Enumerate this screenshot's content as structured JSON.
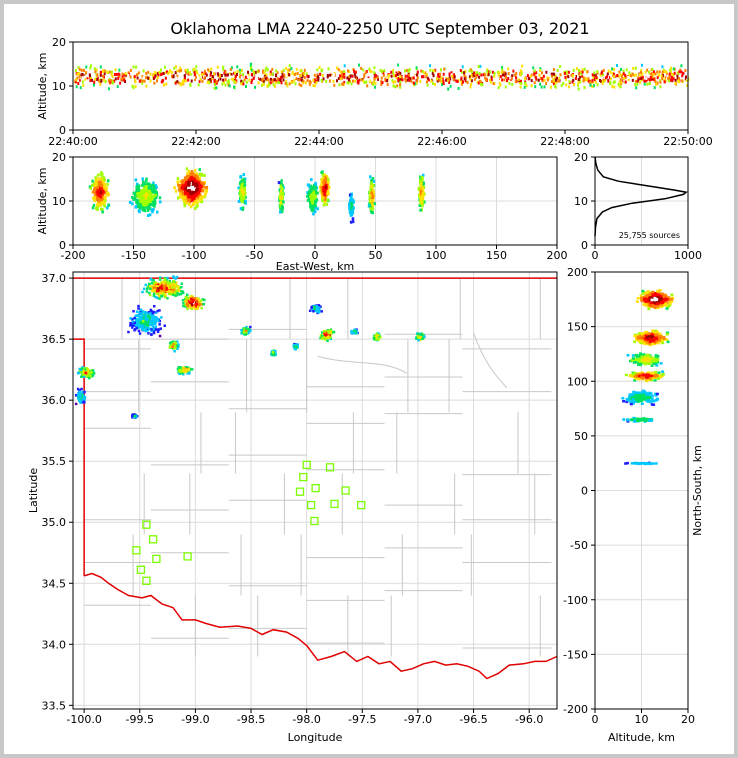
{
  "title": "Oklahoma LMA 2240-2250 UTC September 03, 2021",
  "colors": {
    "density": [
      "#5a00a0",
      "#2020ff",
      "#00c8ff",
      "#00e060",
      "#a0ff00",
      "#ffe000",
      "#ff8000",
      "#ff0000",
      "#a00000",
      "#ffffff"
    ],
    "state_border": "#e00000",
    "stations": "#7cfc00",
    "counties": "#c8c8c8"
  },
  "chart_data": [
    {
      "id": "time-height",
      "type": "heatmap",
      "ylabel": "Altitude, km",
      "ylim": [
        0,
        20
      ],
      "yticks": [
        "0",
        "10",
        "20"
      ],
      "xticks": [
        "22:40:00",
        "22:42:00",
        "22:44:00",
        "22:46:00",
        "22:48:00",
        "22:50:00"
      ],
      "band_km": [
        5,
        20
      ],
      "core_km": 12
    },
    {
      "id": "east-west-height",
      "type": "heatmap",
      "xlabel": "East-West, km",
      "ylabel": "Altitude, km",
      "xlim": [
        -200,
        200
      ],
      "ylim": [
        0,
        20
      ],
      "xticks": [
        "-200",
        "-150",
        "-100",
        "-50",
        "0",
        "50",
        "100",
        "150",
        "200"
      ],
      "yticks": [
        "0",
        "10",
        "20"
      ],
      "cells": [
        {
          "x": -178,
          "width": 15,
          "alt": 12,
          "intensity": 0.85
        },
        {
          "x": -140,
          "width": 25,
          "alt": 11,
          "intensity": 0.55
        },
        {
          "x": -102,
          "width": 25,
          "alt": 13,
          "intensity": 1.0
        },
        {
          "x": -60,
          "width": 6,
          "alt": 12,
          "intensity": 0.6
        },
        {
          "x": -28,
          "width": 4,
          "alt": 11,
          "intensity": 0.6
        },
        {
          "x": -2,
          "width": 10,
          "alt": 11,
          "intensity": 0.5
        },
        {
          "x": 8,
          "width": 8,
          "alt": 13,
          "intensity": 0.85
        },
        {
          "x": 30,
          "width": 4,
          "alt": 9,
          "intensity": 0.35
        },
        {
          "x": 47,
          "width": 5,
          "alt": 11,
          "intensity": 0.7
        },
        {
          "x": 88,
          "width": 5,
          "alt": 12,
          "intensity": 0.7
        }
      ]
    },
    {
      "id": "altitude-histogram",
      "type": "line",
      "annotation": "25,755 sources",
      "xlim": [
        0,
        1000
      ],
      "ylim": [
        0,
        20
      ],
      "xticks": [
        "0",
        "1000"
      ],
      "yticks": [
        "0",
        "10",
        "20"
      ],
      "x": [
        0,
        5,
        20,
        80,
        180,
        400,
        750,
        950,
        980,
        850,
        550,
        250,
        90,
        30,
        10,
        0
      ],
      "y": [
        2,
        4,
        6,
        7.5,
        8.5,
        9.5,
        10.5,
        11.5,
        12,
        12.5,
        13.5,
        14.5,
        15.5,
        17,
        18.5,
        20
      ]
    },
    {
      "id": "plan-view",
      "type": "heatmap",
      "xlabel": "Longitude",
      "ylabel": "Latitude",
      "xlim": [
        -100.1,
        -95.75
      ],
      "ylim": [
        33.47,
        37.05
      ],
      "xticks": [
        "-100.0",
        "-99.5",
        "-99.0",
        "-98.5",
        "-98.0",
        "-97.5",
        "-97.0",
        "-96.5",
        "-96.0"
      ],
      "yticks": [
        "33.5",
        "34.0",
        "34.5",
        "35.0",
        "35.5",
        "36.0",
        "36.5",
        "37.0"
      ],
      "cells": [
        {
          "lon": -99.28,
          "lat": 36.92,
          "rlon": 0.22,
          "rlat": 0.1,
          "intensity": 0.9
        },
        {
          "lon": -99.02,
          "lat": 36.8,
          "rlon": 0.12,
          "rlat": 0.08,
          "intensity": 1.0
        },
        {
          "lon": -99.45,
          "lat": 36.65,
          "rlon": 0.2,
          "rlat": 0.14,
          "intensity": 0.4
        },
        {
          "lon": -99.2,
          "lat": 36.45,
          "rlon": 0.06,
          "rlat": 0.05,
          "intensity": 0.7
        },
        {
          "lon": -98.55,
          "lat": 36.57,
          "rlon": 0.05,
          "rlat": 0.04,
          "intensity": 0.7
        },
        {
          "lon": -98.3,
          "lat": 36.39,
          "rlon": 0.03,
          "rlat": 0.03,
          "intensity": 0.6
        },
        {
          "lon": -98.1,
          "lat": 36.44,
          "rlon": 0.03,
          "rlat": 0.03,
          "intensity": 0.5
        },
        {
          "lon": -97.82,
          "lat": 36.54,
          "rlon": 0.08,
          "rlat": 0.06,
          "intensity": 0.85
        },
        {
          "lon": -97.92,
          "lat": 36.75,
          "rlon": 0.06,
          "rlat": 0.05,
          "intensity": 0.4
        },
        {
          "lon": -97.57,
          "lat": 36.56,
          "rlon": 0.04,
          "rlat": 0.03,
          "intensity": 0.45
        },
        {
          "lon": -97.37,
          "lat": 36.52,
          "rlon": 0.05,
          "rlat": 0.04,
          "intensity": 0.7
        },
        {
          "lon": -96.98,
          "lat": 36.52,
          "rlon": 0.05,
          "rlat": 0.04,
          "intensity": 0.7
        },
        {
          "lon": -99.98,
          "lat": 36.23,
          "rlon": 0.1,
          "rlat": 0.06,
          "intensity": 0.7
        },
        {
          "lon": -100.03,
          "lat": 36.03,
          "rlon": 0.06,
          "rlat": 0.08,
          "intensity": 0.4
        },
        {
          "lon": -99.1,
          "lat": 36.25,
          "rlon": 0.09,
          "rlat": 0.04,
          "intensity": 0.75
        },
        {
          "lon": -99.55,
          "lat": 35.87,
          "rlon": 0.03,
          "rlat": 0.02,
          "intensity": 0.4
        }
      ],
      "stations": [
        {
          "lon": -98.0,
          "lat": 35.47
        },
        {
          "lon": -97.79,
          "lat": 35.45
        },
        {
          "lon": -98.03,
          "lat": 35.37
        },
        {
          "lon": -97.92,
          "lat": 35.28
        },
        {
          "lon": -98.06,
          "lat": 35.25
        },
        {
          "lon": -97.65,
          "lat": 35.26
        },
        {
          "lon": -97.96,
          "lat": 35.14
        },
        {
          "lon": -97.75,
          "lat": 35.15
        },
        {
          "lon": -97.51,
          "lat": 35.14
        },
        {
          "lon": -97.93,
          "lat": 35.01
        },
        {
          "lon": -99.44,
          "lat": 34.98
        },
        {
          "lon": -99.38,
          "lat": 34.86
        },
        {
          "lon": -99.53,
          "lat": 34.77
        },
        {
          "lon": -99.35,
          "lat": 34.7
        },
        {
          "lon": -99.07,
          "lat": 34.72
        },
        {
          "lon": -99.49,
          "lat": 34.61
        },
        {
          "lon": -99.44,
          "lat": 34.52
        }
      ]
    },
    {
      "id": "north-south-height",
      "type": "heatmap",
      "xlabel": "Altitude, km",
      "ylabel": "North-South, km",
      "xlim": [
        0,
        20
      ],
      "ylim": [
        -200,
        200
      ],
      "xticks": [
        "0",
        "10",
        "20"
      ],
      "yticks": [
        "-200",
        "-150",
        "-100",
        "-50",
        "0",
        "50",
        "100",
        "150",
        "200"
      ],
      "cells": [
        {
          "ns": 175,
          "width": 12,
          "alt": 13,
          "intensity": 1.0
        },
        {
          "ns": 140,
          "width": 10,
          "alt": 12,
          "intensity": 0.9
        },
        {
          "ns": 120,
          "width": 8,
          "alt": 11,
          "intensity": 0.6
        },
        {
          "ns": 105,
          "width": 6,
          "alt": 11,
          "intensity": 0.85
        },
        {
          "ns": 85,
          "width": 10,
          "alt": 10,
          "intensity": 0.4
        },
        {
          "ns": 65,
          "width": 3,
          "alt": 10,
          "intensity": 0.4
        },
        {
          "ns": 25,
          "width": 1,
          "alt": 10,
          "intensity": 0.3
        }
      ]
    }
  ]
}
